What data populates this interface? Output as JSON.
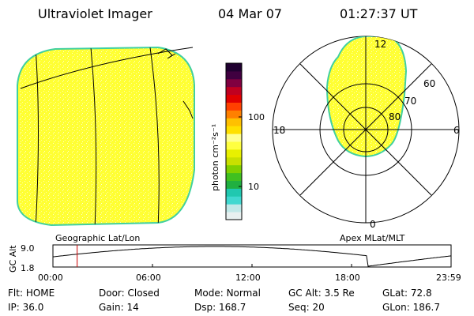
{
  "header": {
    "instrument": "Ultraviolet Imager",
    "date": "04 Mar 07",
    "time": "01:27:37 UT"
  },
  "colorbar": {
    "unit_label": "photon cm⁻²s⁻¹",
    "ticks": [
      "100",
      "10"
    ],
    "colors": [
      "#e8f0f0",
      "#c0e8e8",
      "#40d8d0",
      "#20c8b0",
      "#20b040",
      "#40c020",
      "#80d000",
      "#c8e000",
      "#e8f000",
      "#ffff40",
      "#ffff90",
      "#ffe000",
      "#ffc000",
      "#ff8000",
      "#ff4000",
      "#e00000",
      "#c00020",
      "#800040",
      "#400040",
      "#200030"
    ]
  },
  "geo_panel": {
    "label": "Geographic Lat/Lon",
    "fill_color": "#ffff33"
  },
  "polar_panel": {
    "label": "Apex MLat/MLT",
    "mlt_labels": {
      "top": "12",
      "left": "18",
      "right": "6",
      "bottom": "0"
    },
    "mlat_labels": [
      "60",
      "70",
      "80"
    ]
  },
  "altitude_plot": {
    "ylabel": "GC Alt",
    "yticks": [
      "9.0",
      "1.8"
    ],
    "xticks": [
      "00:00",
      "06:00",
      "12:00",
      "18:00",
      "23:59"
    ],
    "current_time_hours": 1.46,
    "marker_color": "#cc0000"
  },
  "footer": {
    "row1": [
      {
        "key": "Flt:",
        "value": "HOME"
      },
      {
        "key": "Door:",
        "value": "Closed"
      },
      {
        "key": "Mode:",
        "value": "Normal"
      },
      {
        "key": "GC Alt:",
        "value": "3.5 Re"
      },
      {
        "key": "GLat:",
        "value": "72.8"
      }
    ],
    "row2": [
      {
        "key": "IP:",
        "value": "36.0"
      },
      {
        "key": "Gain:",
        "value": "14"
      },
      {
        "key": "Dsp:",
        "value": "168.7"
      },
      {
        "key": "Seq:",
        "value": "20"
      },
      {
        "key": "GLon:",
        "value": "186.7"
      }
    ]
  }
}
